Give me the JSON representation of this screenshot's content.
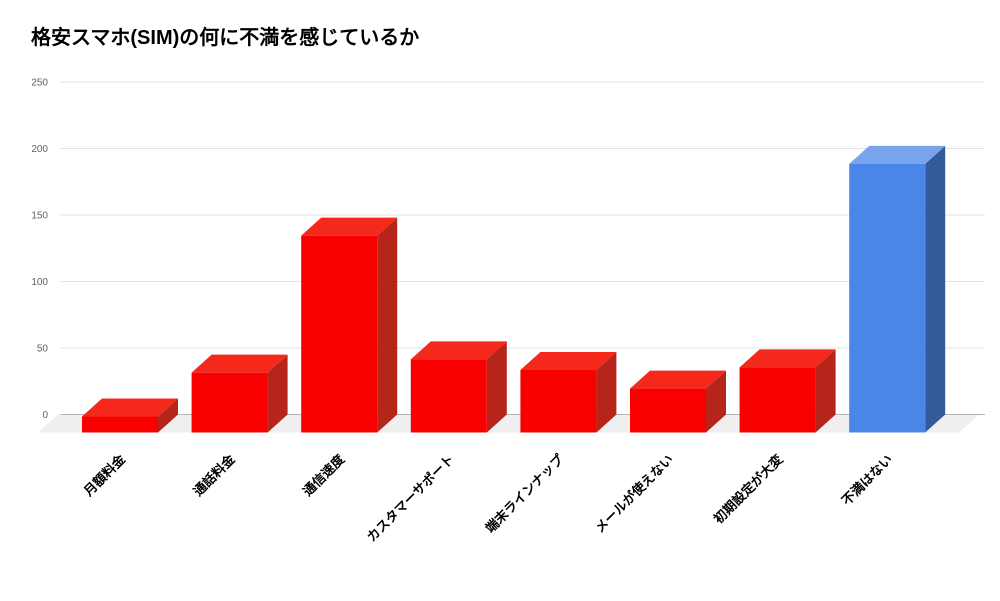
{
  "title": "格安スマホ(SIM)の何に不満を感じているか",
  "chart_data": {
    "type": "bar",
    "style": "3d-column",
    "title": "格安スマホ(SIM)の何に不満を感じているか",
    "categories": [
      "月額料金",
      "通話料金",
      "通信速度",
      "カスタマーサポート",
      "端末ラインナップ",
      "メールが使えない",
      "初期設定が大変",
      "不満はない"
    ],
    "values": [
      12,
      45,
      148,
      55,
      47,
      33,
      49,
      202
    ],
    "bar_color_keys": [
      "red",
      "red",
      "red",
      "red",
      "red",
      "red",
      "red",
      "blue"
    ],
    "palette": {
      "red": {
        "front": "#f90000",
        "top": "#f5281c",
        "side": "#b5251a"
      },
      "blue": {
        "front": "#4a86e8",
        "top": "#7aa3ee",
        "side": "#345a9b"
      }
    },
    "xlabel": "",
    "ylabel": "",
    "ylim": [
      0,
      250
    ],
    "yticks": [
      0,
      50,
      100,
      150,
      200,
      250
    ],
    "grid": true,
    "legend": "none"
  },
  "colors": {
    "background": "#ffffff",
    "gridline": "#e3e3e3",
    "baseline": "#b5b5b5",
    "floor": "#efefef",
    "axis_text": "#616161",
    "label_text": "#000000"
  }
}
